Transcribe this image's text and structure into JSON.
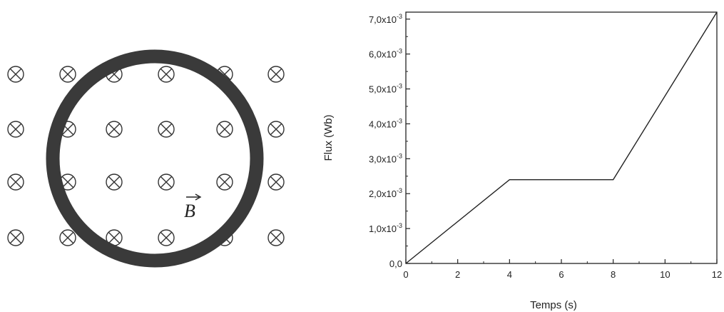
{
  "diagram": {
    "field_label": "B",
    "field_symbol_icon": "cross-in-circle-icon",
    "field_grid": {
      "rows": 4,
      "cols": 6
    }
  },
  "chart_data": {
    "type": "line",
    "xlabel": "Temps (s)",
    "ylabel": "Flux (Wb)",
    "xlim": [
      0,
      12
    ],
    "ylim": [
      0,
      0.0072
    ],
    "x_ticks": [
      0,
      2,
      4,
      6,
      8,
      10,
      12
    ],
    "y_ticks": [
      {
        "value": 0.0,
        "mantissa": "0,0",
        "exp": ""
      },
      {
        "value": 0.001,
        "mantissa": "1,0x10",
        "exp": "-3"
      },
      {
        "value": 0.002,
        "mantissa": "2,0x10",
        "exp": "-3"
      },
      {
        "value": 0.003,
        "mantissa": "3,0x10",
        "exp": "-3"
      },
      {
        "value": 0.004,
        "mantissa": "4,0x10",
        "exp": "-3"
      },
      {
        "value": 0.005,
        "mantissa": "5,0x10",
        "exp": "-3"
      },
      {
        "value": 0.006,
        "mantissa": "6,0x10",
        "exp": "-3"
      },
      {
        "value": 0.007,
        "mantissa": "7,0x10",
        "exp": "-3"
      }
    ],
    "series": [
      {
        "x": [
          0,
          4,
          8,
          12
        ],
        "y": [
          0,
          0.0024,
          0.0024,
          0.0072
        ]
      }
    ],
    "grid": false,
    "legend": "none"
  }
}
